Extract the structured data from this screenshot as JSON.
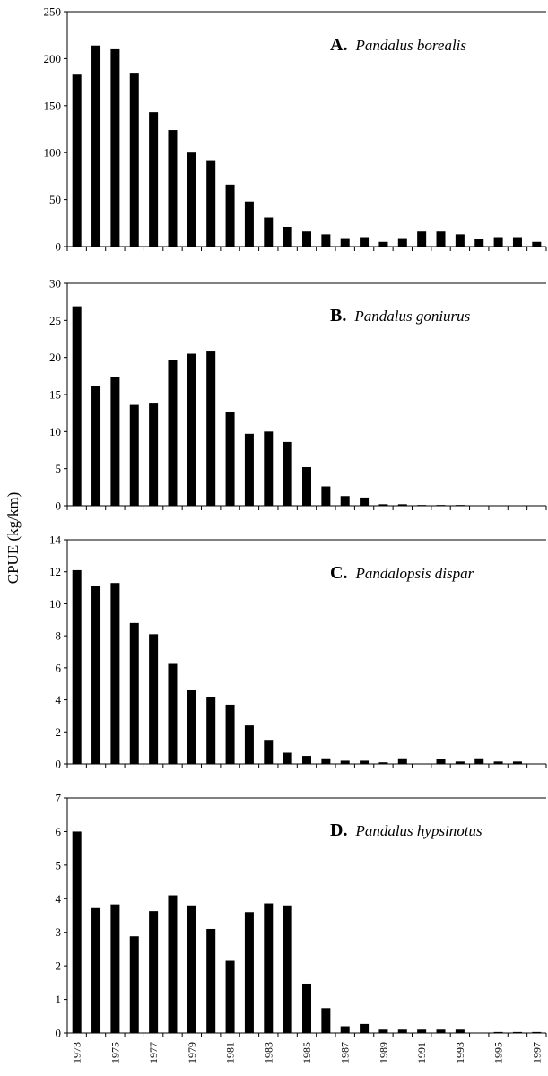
{
  "ylabel": "CPUE (kg/km)",
  "years": [
    "1973",
    "1974",
    "1975",
    "1976",
    "1977",
    "1978",
    "1979",
    "1980",
    "1981",
    "1982",
    "1983",
    "1984",
    "1985",
    "1986",
    "1987",
    "1988",
    "1989",
    "1990",
    "1991",
    "1992",
    "1993",
    "1994",
    "1995",
    "1996",
    "1997"
  ],
  "x_tick_labels": [
    "1973",
    "1975",
    "1977",
    "1979",
    "1981",
    "1983",
    "1985",
    "1987",
    "1989",
    "1991",
    "1993",
    "1995",
    "1997"
  ],
  "colors": {
    "bar": "#000000",
    "axis": "#000000",
    "background": "#ffffff"
  },
  "chart_data": [
    {
      "type": "bar",
      "panel_letter": "A.",
      "species": "Pandalus borealis",
      "ylim": [
        0,
        250
      ],
      "yticks": [
        0,
        50,
        100,
        150,
        200,
        250
      ],
      "values": [
        183,
        214,
        210,
        185,
        143,
        124,
        100,
        92,
        66,
        48,
        31,
        21,
        16,
        13,
        9,
        10,
        5,
        9,
        16,
        16,
        13,
        8,
        10,
        10,
        5
      ]
    },
    {
      "type": "bar",
      "panel_letter": "B.",
      "species": "Pandalus goniurus",
      "ylim": [
        0,
        30
      ],
      "yticks": [
        0,
        5,
        10,
        15,
        20,
        25,
        30
      ],
      "values": [
        26.9,
        16.1,
        17.3,
        13.6,
        13.9,
        19.7,
        20.5,
        20.8,
        12.7,
        9.7,
        10.0,
        8.6,
        5.2,
        2.6,
        1.3,
        1.1,
        0.2,
        0.2,
        0.1,
        0.1,
        0.1,
        0.0,
        0.0,
        0.0,
        0.0
      ]
    },
    {
      "type": "bar",
      "panel_letter": "C.",
      "species": "Pandalopsis dispar",
      "ylim": [
        0,
        14
      ],
      "yticks": [
        0,
        2,
        4,
        6,
        8,
        10,
        12,
        14
      ],
      "values": [
        12.1,
        11.1,
        11.3,
        8.8,
        8.1,
        6.3,
        4.6,
        4.2,
        3.7,
        2.4,
        1.5,
        0.7,
        0.5,
        0.35,
        0.2,
        0.2,
        0.1,
        0.35,
        0.0,
        0.3,
        0.15,
        0.35,
        0.15,
        0.15,
        0.0
      ]
    },
    {
      "type": "bar",
      "panel_letter": "D.",
      "species": "Pandalus hypsinotus",
      "ylim": [
        0,
        7
      ],
      "yticks": [
        0,
        1,
        2,
        3,
        4,
        5,
        6,
        7
      ],
      "values": [
        6.0,
        3.72,
        3.83,
        2.88,
        3.63,
        4.1,
        3.8,
        3.1,
        2.15,
        3.6,
        3.86,
        3.8,
        1.47,
        0.74,
        0.2,
        0.27,
        0.1,
        0.1,
        0.1,
        0.1,
        0.1,
        0.0,
        0.03,
        0.03,
        0.03
      ]
    }
  ]
}
